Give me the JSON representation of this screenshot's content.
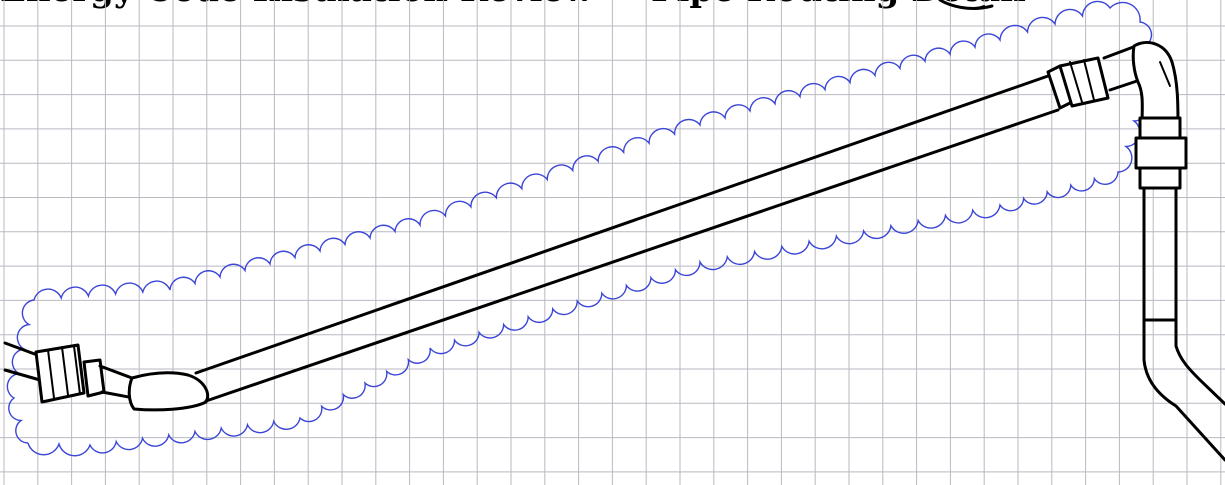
{
  "header": {
    "text": "Energy Code Insulation Review — Pipe Routing Detail"
  },
  "colors": {
    "grid": "#b9b9c2",
    "pipe_stroke": "#000000",
    "revision_cloud": "#3b46d6",
    "background": "#ffffff"
  },
  "icons": {
    "revision_cloud": "revision-cloud",
    "header_symbol": "circle-symbol"
  }
}
